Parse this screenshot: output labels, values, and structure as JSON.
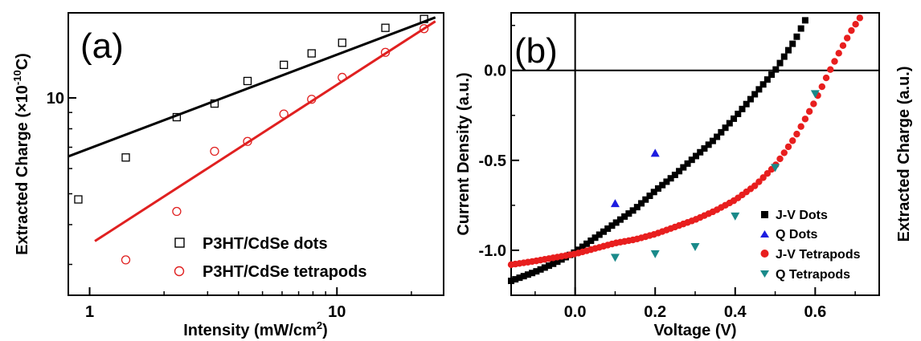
{
  "chart_data": [
    {
      "type": "scatter",
      "panel_label": "(a)",
      "xlabel": "Intensity (mW/cm",
      "xlabel_sup": "2",
      "xlabel_end": ")",
      "ylabel": "Extracted Charge (×10",
      "ylabel_sup": "-10",
      "ylabel_end": "C)",
      "x_scale": "log",
      "y_scale": "log",
      "xlim": [
        0.82,
        27
      ],
      "ylim": [
        2.4,
        18.5
      ],
      "x_ticks": [
        {
          "value": 1,
          "label": "1"
        },
        {
          "value": 10,
          "label": "10"
        }
      ],
      "y_ticks": [
        {
          "value": 10,
          "label": "10"
        }
      ],
      "legend_position": "bottom-right",
      "series": [
        {
          "name": "P3HT/CdSe dots",
          "marker": "open-square",
          "color": "#000000",
          "x": [
            0.9,
            1.4,
            2.25,
            3.2,
            4.35,
            6.1,
            7.9,
            10.5,
            15.7,
            22.5
          ],
          "y": [
            4.8,
            6.5,
            8.7,
            9.6,
            11.3,
            12.7,
            13.8,
            14.9,
            16.6,
            17.7
          ],
          "fit": {
            "x": [
              0.82,
              25
            ],
            "y": [
              6.55,
              17.9
            ],
            "color": "#000000"
          }
        },
        {
          "name": "P3HT/CdSe tetrapods",
          "marker": "open-circle",
          "color": "#e02020",
          "x": [
            1.4,
            2.25,
            3.2,
            4.35,
            6.1,
            7.9,
            10.5,
            15.7,
            22.5
          ],
          "y": [
            3.1,
            4.4,
            6.8,
            7.3,
            8.9,
            9.9,
            11.6,
            13.9,
            16.5
          ],
          "fit": {
            "x": [
              1.05,
              25
            ],
            "y": [
              3.55,
              17.4
            ],
            "color": "#e02020"
          }
        }
      ]
    },
    {
      "type": "scatter",
      "panel_label": "(b)",
      "xlabel": "Voltage (V)",
      "ylabel": "Current Density (a.u.)",
      "ylabel_right": "Extracted Charge (a.u.)",
      "xlim": [
        -0.16,
        0.76
      ],
      "ylim": [
        -1.25,
        0.32
      ],
      "x_ticks": [
        {
          "value": 0.0,
          "label": "0.0"
        },
        {
          "value": 0.2,
          "label": "0.2"
        },
        {
          "value": 0.4,
          "label": "0.4"
        },
        {
          "value": 0.6,
          "label": "0.6"
        }
      ],
      "y_ticks": [
        {
          "value": 0.0,
          "label": "0.0"
        },
        {
          "value": -0.5,
          "label": "-0.5"
        },
        {
          "value": -1.0,
          "label": "-1.0"
        }
      ],
      "reference_lines": {
        "x": 0,
        "y": 0
      },
      "legend_position": "bottom-right",
      "series": [
        {
          "name": "J-V Dots",
          "marker": "filled-square",
          "color": "#000000",
          "curve": {
            "x": [
              -0.16,
              -0.1,
              -0.05,
              0.0,
              0.05,
              0.1,
              0.15,
              0.2,
              0.25,
              0.3,
              0.35,
              0.4,
              0.45,
              0.5,
              0.55,
              0.58
            ],
            "y": [
              -1.17,
              -1.12,
              -1.07,
              -1.01,
              -0.93,
              -0.85,
              -0.77,
              -0.67,
              -0.58,
              -0.48,
              -0.38,
              -0.26,
              -0.13,
              0.0,
              0.17,
              0.3
            ]
          }
        },
        {
          "name": "Q Dots",
          "marker": "filled-triangle-up",
          "color": "#1c1ce0",
          "x": [
            0.1,
            0.2
          ],
          "y": [
            -0.74,
            -0.46
          ]
        },
        {
          "name": "J-V Tetrapods",
          "marker": "filled-circle",
          "color": "#e81e1e",
          "curve": {
            "x": [
              -0.16,
              -0.1,
              -0.05,
              0.0,
              0.05,
              0.1,
              0.15,
              0.2,
              0.25,
              0.3,
              0.35,
              0.4,
              0.45,
              0.5,
              0.55,
              0.6,
              0.63,
              0.66,
              0.69,
              0.72
            ],
            "y": [
              -1.08,
              -1.06,
              -1.04,
              -1.02,
              -0.99,
              -0.96,
              -0.94,
              -0.91,
              -0.87,
              -0.83,
              -0.78,
              -0.72,
              -0.64,
              -0.53,
              -0.37,
              -0.17,
              -0.03,
              0.1,
              0.22,
              0.32
            ]
          }
        },
        {
          "name": "Q Tetrapods",
          "marker": "filled-triangle-down",
          "color": "#1a8a8a",
          "x": [
            0.1,
            0.2,
            0.3,
            0.4,
            0.5,
            0.6
          ],
          "y": [
            -1.04,
            -1.02,
            -0.98,
            -0.81,
            -0.54,
            -0.13
          ]
        }
      ]
    }
  ]
}
